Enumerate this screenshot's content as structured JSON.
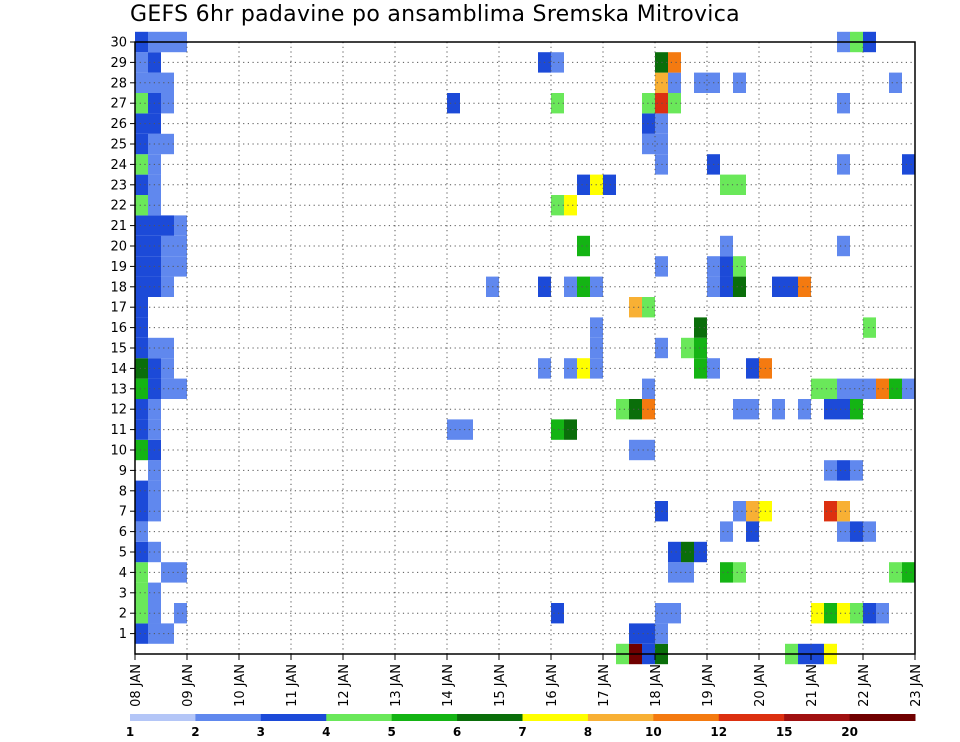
{
  "chart_data": {
    "type": "heatmap",
    "title": "GEFS 6hr padavine po ansamblima Sremska Mitrovica",
    "x_tick_labels": [
      "08 JAN",
      "09 JAN",
      "10 JAN",
      "11 JAN",
      "12 JAN",
      "13 JAN",
      "14 JAN",
      "15 JAN",
      "16 JAN",
      "17 JAN",
      "18 JAN",
      "19 JAN",
      "20 JAN",
      "21 JAN",
      "22 JAN",
      "23 JAN"
    ],
    "y_tick_labels": [
      "1",
      "2",
      "3",
      "4",
      "5",
      "6",
      "7",
      "8",
      "9",
      "10",
      "11",
      "12",
      "13",
      "14",
      "15",
      "16",
      "17",
      "18",
      "19",
      "20",
      "21",
      "22",
      "23",
      "24",
      "25",
      "26",
      "27",
      "28",
      "29",
      "30"
    ],
    "x_range_days": [
      0,
      15
    ],
    "y_range_members": [
      0,
      30
    ],
    "grid": "dotted",
    "legend_position": "bottom",
    "legend": {
      "labels": [
        "1",
        "2",
        "3",
        "4",
        "5",
        "6",
        "7",
        "8",
        "10",
        "12",
        "15",
        "20"
      ],
      "colors": [
        "#b4c6f7",
        "#6088ee",
        "#1c4ad8",
        "#6ae85a",
        "#14b414",
        "#0a6e0a",
        "#ffff00",
        "#f8b034",
        "#f47a10",
        "#dc3010",
        "#a01010",
        "#700000"
      ]
    },
    "cells": [
      [
        0,
        1,
        2
      ],
      [
        1,
        1,
        1
      ],
      [
        2,
        1,
        1
      ],
      [
        0,
        2,
        3
      ],
      [
        1,
        2,
        1
      ],
      [
        3,
        2,
        1
      ],
      [
        0,
        3,
        3
      ],
      [
        1,
        2,
        1
      ],
      [
        0,
        4,
        3
      ],
      [
        1,
        3,
        1
      ],
      [
        2,
        4,
        1
      ],
      [
        3,
        4,
        1
      ],
      [
        0,
        5,
        2
      ],
      [
        1,
        5,
        1
      ],
      [
        0,
        6,
        1
      ],
      [
        0,
        7,
        2
      ],
      [
        1,
        7,
        1
      ],
      [
        0,
        8,
        2
      ],
      [
        1,
        8,
        1
      ],
      [
        1,
        9,
        1
      ],
      [
        0,
        10,
        4
      ],
      [
        1,
        10,
        2
      ],
      [
        0,
        11,
        2
      ],
      [
        1,
        11,
        1
      ],
      [
        0,
        12,
        2
      ],
      [
        1,
        12,
        1
      ],
      [
        0,
        13,
        4
      ],
      [
        1,
        13,
        2
      ],
      [
        2,
        13,
        1
      ],
      [
        3,
        13,
        1
      ],
      [
        0,
        14,
        5
      ],
      [
        1,
        14,
        2
      ],
      [
        2,
        14,
        1
      ],
      [
        0,
        15,
        2
      ],
      [
        1,
        15,
        1
      ],
      [
        2,
        15,
        1
      ],
      [
        0,
        16,
        2
      ],
      [
        0,
        17,
        2
      ],
      [
        0,
        18,
        2
      ],
      [
        1,
        18,
        2
      ],
      [
        2,
        18,
        1
      ],
      [
        0,
        19,
        2
      ],
      [
        1,
        19,
        2
      ],
      [
        2,
        19,
        1
      ],
      [
        3,
        19,
        1
      ],
      [
        0,
        20,
        2
      ],
      [
        1,
        20,
        2
      ],
      [
        2,
        20,
        1
      ],
      [
        3,
        20,
        1
      ],
      [
        0,
        21,
        2
      ],
      [
        1,
        21,
        2
      ],
      [
        2,
        21,
        2
      ],
      [
        3,
        21,
        1
      ],
      [
        0,
        22,
        3
      ],
      [
        1,
        22,
        1
      ],
      [
        0,
        23,
        2
      ],
      [
        1,
        23,
        1
      ],
      [
        0,
        24,
        3
      ],
      [
        1,
        24,
        1
      ],
      [
        0,
        25,
        2
      ],
      [
        1,
        25,
        1
      ],
      [
        2,
        25,
        1
      ],
      [
        0,
        26,
        2
      ],
      [
        1,
        26,
        2
      ],
      [
        0,
        27,
        3
      ],
      [
        1,
        27,
        2
      ],
      [
        2,
        27,
        1
      ],
      [
        0,
        28,
        1
      ],
      [
        1,
        28,
        1
      ],
      [
        2,
        28,
        1
      ],
      [
        0,
        29,
        1
      ],
      [
        1,
        29,
        2
      ],
      [
        0,
        30,
        2
      ],
      [
        1,
        30,
        1
      ],
      [
        2,
        30,
        1
      ],
      [
        3,
        30,
        1
      ],
      [
        24,
        27,
        2
      ],
      [
        27,
        18,
        1
      ],
      [
        24,
        11,
        1
      ],
      [
        25,
        11,
        1
      ],
      [
        31,
        29,
        2
      ],
      [
        32,
        29,
        1
      ],
      [
        32,
        27,
        3
      ],
      [
        31,
        18,
        2
      ],
      [
        31,
        14,
        1
      ],
      [
        32,
        22,
        3
      ],
      [
        33,
        22,
        6
      ],
      [
        32,
        11,
        4
      ],
      [
        33,
        11,
        5
      ],
      [
        32,
        2,
        2
      ],
      [
        33,
        18,
        1
      ],
      [
        34,
        18,
        4
      ],
      [
        35,
        18,
        1
      ],
      [
        33,
        14,
        1
      ],
      [
        34,
        14,
        6
      ],
      [
        35,
        14,
        1
      ],
      [
        34,
        20,
        4
      ],
      [
        34,
        23,
        2
      ],
      [
        35,
        23,
        6
      ],
      [
        36,
        23,
        2
      ],
      [
        35,
        16,
        1
      ],
      [
        35,
        15,
        1
      ],
      [
        37,
        0,
        3
      ],
      [
        38,
        0,
        11
      ],
      [
        38,
        1,
        2
      ],
      [
        39,
        1,
        2
      ],
      [
        37,
        12,
        3
      ],
      [
        38,
        12,
        5
      ],
      [
        39,
        12,
        8
      ],
      [
        38,
        17,
        7
      ],
      [
        39,
        17,
        3
      ],
      [
        38,
        10,
        1
      ],
      [
        39,
        10,
        1
      ],
      [
        39,
        13,
        1
      ],
      [
        40,
        0,
        5
      ],
      [
        39,
        0,
        2
      ],
      [
        40,
        1,
        1
      ],
      [
        40,
        2,
        1
      ],
      [
        40,
        7,
        2
      ],
      [
        40,
        15,
        1
      ],
      [
        40,
        19,
        1
      ],
      [
        39,
        25,
        1
      ],
      [
        40,
        25,
        1
      ],
      [
        40,
        26,
        1
      ],
      [
        39,
        26,
        2
      ],
      [
        39,
        27,
        3
      ],
      [
        40,
        27,
        9
      ],
      [
        40,
        28,
        7
      ],
      [
        41,
        28,
        1
      ],
      [
        40,
        29,
        5
      ],
      [
        41,
        29,
        8
      ],
      [
        41,
        27,
        3
      ],
      [
        40,
        24,
        1
      ],
      [
        41,
        2,
        1
      ],
      [
        41,
        4,
        1
      ],
      [
        41,
        5,
        2
      ],
      [
        42,
        4,
        1
      ],
      [
        42,
        5,
        5
      ],
      [
        43,
        5,
        2
      ],
      [
        42,
        15,
        3
      ],
      [
        43,
        15,
        4
      ],
      [
        43,
        16,
        5
      ],
      [
        44,
        14,
        1
      ],
      [
        43,
        14,
        4
      ],
      [
        44,
        18,
        1
      ],
      [
        45,
        18,
        1
      ],
      [
        44,
        19,
        1
      ],
      [
        45,
        19,
        2
      ],
      [
        46,
        19,
        3
      ],
      [
        45,
        18,
        2
      ],
      [
        46,
        18,
        5
      ],
      [
        45,
        20,
        1
      ],
      [
        44,
        24,
        2
      ],
      [
        43,
        28,
        1
      ],
      [
        44,
        28,
        1
      ],
      [
        46,
        28,
        1
      ],
      [
        45,
        4,
        4
      ],
      [
        46,
        4,
        3
      ],
      [
        45,
        6,
        1
      ],
      [
        46,
        7,
        1
      ],
      [
        47,
        7,
        7
      ],
      [
        48,
        7,
        6
      ],
      [
        47,
        6,
        2
      ],
      [
        45,
        23,
        3
      ],
      [
        46,
        23,
        3
      ],
      [
        47,
        12,
        1
      ],
      [
        46,
        12,
        1
      ],
      [
        47,
        14,
        2
      ],
      [
        48,
        14,
        8
      ],
      [
        49,
        18,
        2
      ],
      [
        50,
        18,
        2
      ],
      [
        51,
        18,
        8
      ],
      [
        49,
        12,
        1
      ],
      [
        50,
        0,
        3
      ],
      [
        51,
        0,
        2
      ],
      [
        52,
        0,
        2
      ],
      [
        53,
        0,
        6
      ],
      [
        52,
        2,
        6
      ],
      [
        53,
        2,
        4
      ],
      [
        54,
        2,
        6
      ],
      [
        55,
        2,
        3
      ],
      [
        56,
        2,
        2
      ],
      [
        57,
        2,
        1
      ],
      [
        54,
        6,
        1
      ],
      [
        55,
        6,
        2
      ],
      [
        56,
        6,
        1
      ],
      [
        53,
        7,
        9
      ],
      [
        54,
        7,
        7
      ],
      [
        53,
        9,
        1
      ],
      [
        54,
        9,
        2
      ],
      [
        55,
        9,
        1
      ],
      [
        52,
        13,
        3
      ],
      [
        53,
        13,
        3
      ],
      [
        54,
        13,
        1
      ],
      [
        55,
        13,
        1
      ],
      [
        56,
        13,
        1
      ],
      [
        57,
        13,
        8
      ],
      [
        58,
        13,
        4
      ],
      [
        59,
        13,
        1
      ],
      [
        53,
        12,
        2
      ],
      [
        54,
        12,
        2
      ],
      [
        55,
        12,
        4
      ],
      [
        56,
        16,
        3
      ],
      [
        54,
        20,
        1
      ],
      [
        54,
        24,
        1
      ],
      [
        54,
        27,
        1
      ],
      [
        54,
        30,
        1
      ],
      [
        55,
        30,
        3
      ],
      [
        56,
        30,
        2
      ],
      [
        58,
        4,
        3
      ],
      [
        59,
        4,
        4
      ],
      [
        59,
        24,
        2
      ],
      [
        58,
        28,
        1
      ],
      [
        51,
        12,
        1
      ]
    ]
  }
}
